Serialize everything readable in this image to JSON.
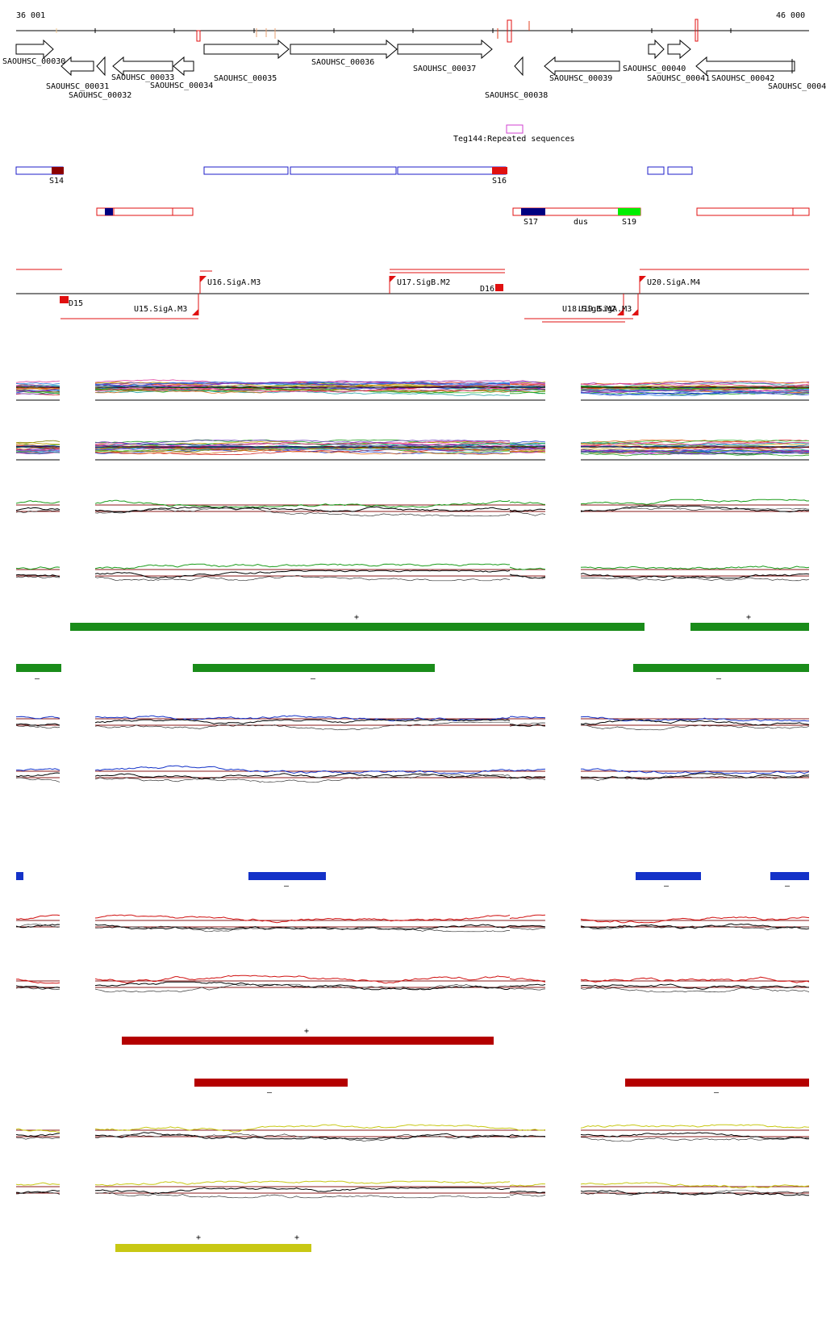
{
  "ruler": {
    "start_label": "36 001",
    "end_label": "46 000"
  },
  "genes": [
    {
      "id": "SAOUHSC_00030",
      "strand": "+"
    },
    {
      "id": "SAOUHSC_00031",
      "strand": "-"
    },
    {
      "id": "SAOUHSC_00032",
      "strand": "-"
    },
    {
      "id": "SAOUHSC_00033",
      "strand": "-"
    },
    {
      "id": "SAOUHSC_00034",
      "strand": "-"
    },
    {
      "id": "SAOUHSC_00035",
      "strand": "+"
    },
    {
      "id": "SAOUHSC_00036",
      "strand": "+"
    },
    {
      "id": "SAOUHSC_00037",
      "strand": "+"
    },
    {
      "id": "SAOUHSC_00038",
      "strand": "-"
    },
    {
      "id": "SAOUHSC_00039",
      "strand": "-"
    },
    {
      "id": "SAOUHSC_00040",
      "strand": "+"
    },
    {
      "id": "SAOUHSC_00041",
      "strand": "+"
    },
    {
      "id": "SAOUHSC_00042",
      "strand": "-"
    },
    {
      "id": "SAOUHSC_0004",
      "strand": "-"
    }
  ],
  "repeat_label": "Teg144:Repeated sequences",
  "segments_plus": [
    "S14",
    "S16"
  ],
  "segments_minus": [
    "S17",
    "dus",
    "S19"
  ],
  "promoters": [
    "U16.SigA.M3",
    "U17.SigB.M2",
    "D16",
    "U20.SigA.M4",
    "D15",
    "U15.SigA.M3",
    "U18.SigB.M2",
    "U19.SigA.M3"
  ],
  "strand_marks": {
    "green_plus": [
      "+",
      "+"
    ],
    "green_minus": [
      "–",
      "–",
      "–"
    ],
    "blue_minus": [
      "–",
      "–",
      "–"
    ],
    "red_plus": [
      "+"
    ],
    "red_minus": [
      "–",
      "–"
    ],
    "yellow_plus": [
      "+",
      "+"
    ]
  },
  "colors": {
    "gene_outline": "#000000",
    "blue_box": "#1e1ec8",
    "red_box": "#e01010",
    "dark_red": "#8b0000",
    "navy": "#000080",
    "bright_green": "#00ee00",
    "magenta": "#d040d0",
    "green_bar": "#1a8c1a",
    "blue_bar": "#1432c8",
    "red_bar": "#b40000",
    "yellow_bar": "#c8c814",
    "threshold": "#8b1a1a"
  }
}
